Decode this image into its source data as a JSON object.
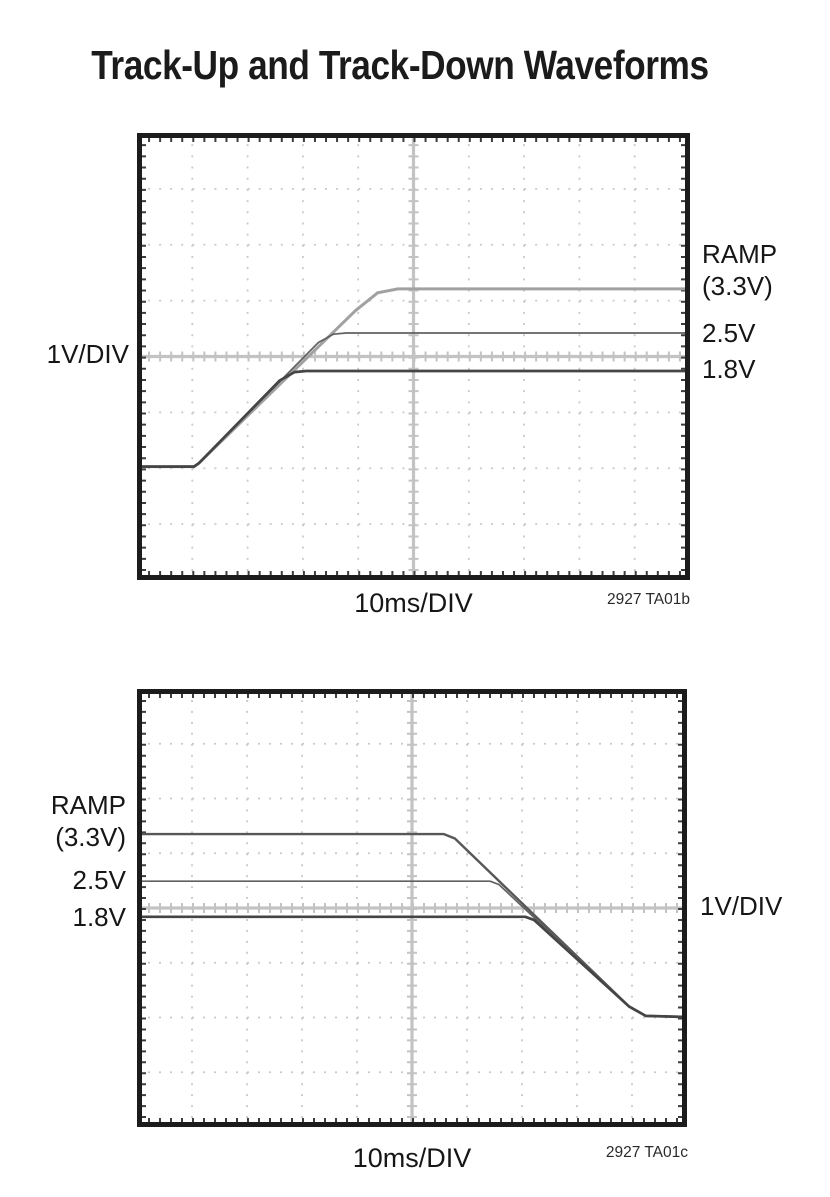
{
  "page": {
    "title": "Track-Up and Track-Down Waveforms"
  },
  "style": {
    "background": "#ffffff",
    "text_color": "#111111",
    "grid_dot_color": "#c9c9c9",
    "center_line_color": "#c3c3c3",
    "border_color": "#1c1c1c",
    "border_tick_color": "#3d3d3d"
  },
  "chart_data": [
    {
      "type": "line",
      "name": "track-up",
      "description": "Oscilloscope capture: RAMP (3.3V), 2.5V and 1.8V outputs tracking up together",
      "volts_per_div": 1,
      "timebase_per_div_ms": 10,
      "grid": {
        "x_divs": 10,
        "y_divs": 8,
        "minor_per_div": 5
      },
      "labels": {
        "vdiv": "1V/DIV",
        "timebase": "10ms/DIV",
        "code": "2927 TA01b",
        "ramp_line1": "RAMP",
        "ramp_line2": "(3.3V)",
        "v25": "2.5V",
        "v18": "1.8V"
      },
      "points_div_format": "[x_div_from_left, y_div_from_top]",
      "series": [
        {
          "id": "ramp-3v3",
          "name": "RAMP (3.3V)",
          "voltage": 3.3,
          "color": "#a1a1a1",
          "width": 3,
          "points_div": [
            [
              0,
              5.97
            ],
            [
              1.03,
              5.97
            ],
            [
              1.12,
              5.91
            ],
            [
              3.95,
              3.18
            ],
            [
              4.35,
              2.86
            ],
            [
              4.72,
              2.79
            ],
            [
              10,
              2.79
            ]
          ]
        },
        {
          "id": "v2p5",
          "name": "2.5V",
          "voltage": 2.5,
          "color": "#616161",
          "width": 1.7,
          "points_div": [
            [
              0,
              5.97
            ],
            [
              1.03,
              5.97
            ],
            [
              1.12,
              5.91
            ],
            [
              3.28,
              3.75
            ],
            [
              3.55,
              3.6
            ],
            [
              3.78,
              3.58
            ],
            [
              10,
              3.58
            ]
          ]
        },
        {
          "id": "v1p8",
          "name": "1.8V",
          "voltage": 1.8,
          "color": "#454545",
          "width": 2.7,
          "points_div": [
            [
              0,
              5.97
            ],
            [
              1.03,
              5.97
            ],
            [
              1.12,
              5.91
            ],
            [
              2.58,
              4.43
            ],
            [
              2.85,
              4.28
            ],
            [
              3.06,
              4.26
            ],
            [
              10,
              4.26
            ]
          ]
        }
      ]
    },
    {
      "type": "line",
      "name": "track-down",
      "description": "Oscilloscope capture: RAMP (3.3V), 2.5V and 1.8V outputs tracking down together",
      "volts_per_div": 1,
      "timebase_per_div_ms": 10,
      "grid": {
        "x_divs": 10,
        "y_divs": 8,
        "minor_per_div": 5
      },
      "labels": {
        "vdiv": "1V/DIV",
        "timebase": "10ms/DIV",
        "code": "2927 TA01c",
        "ramp_line1": "RAMP",
        "ramp_line2": "(3.3V)",
        "v25": "2.5V",
        "v18": "1.8V"
      },
      "points_div_format": "[x_div_from_left, y_div_from_top]",
      "series": [
        {
          "id": "ramp-3v3",
          "name": "RAMP (3.3V)",
          "voltage": 3.3,
          "color": "#575757",
          "width": 2.4,
          "points_div": [
            [
              0,
              2.65
            ],
            [
              5.58,
              2.65
            ],
            [
              5.78,
              2.73
            ],
            [
              8.95,
              5.8
            ],
            [
              9.25,
              5.97
            ],
            [
              10,
              5.99
            ]
          ]
        },
        {
          "id": "v2p5",
          "name": "2.5V",
          "voltage": 2.5,
          "color": "#616161",
          "width": 1.7,
          "points_div": [
            [
              0,
              3.51
            ],
            [
              6.42,
              3.51
            ],
            [
              6.58,
              3.57
            ],
            [
              8.95,
              5.8
            ],
            [
              9.25,
              5.97
            ],
            [
              10,
              5.99
            ]
          ]
        },
        {
          "id": "v1p8",
          "name": "1.8V",
          "voltage": 1.8,
          "color": "#454545",
          "width": 2.7,
          "points_div": [
            [
              0,
              4.16
            ],
            [
              7.06,
              4.16
            ],
            [
              7.22,
              4.22
            ],
            [
              8.95,
              5.8
            ],
            [
              9.25,
              5.97
            ],
            [
              10,
              5.99
            ]
          ]
        }
      ]
    }
  ]
}
